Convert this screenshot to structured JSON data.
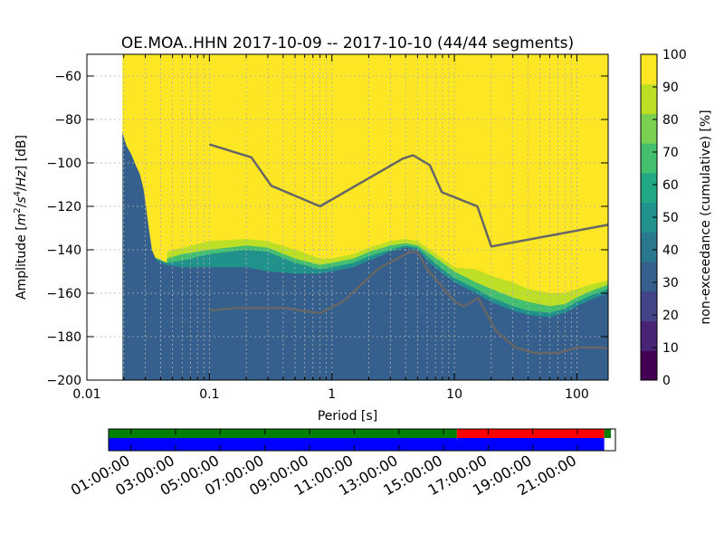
{
  "chart_data": {
    "type": "heatmap",
    "title": "OE.MOA..HHN   2017-10-09 -- 2017-10-10  (44/44 segments)",
    "xlabel": "Period [s]",
    "ylabel": "Amplitude [$m^2/s^4/Hz$] [dB]",
    "ylabel_parts": {
      "prefix": "Amplitude [",
      "m": "m",
      "two": "2",
      "slash1": "/",
      "s": "s",
      "four": "4",
      "slash2": "/",
      "hz": "Hz",
      "suffix": "] [dB]"
    },
    "x_scale": "log",
    "xlim": [
      0.01,
      180
    ],
    "ylim": [
      -200,
      -50
    ],
    "grid": true,
    "x_ticks": [
      {
        "value": 0.01,
        "label": "0.01"
      },
      {
        "value": 0.1,
        "label": "0.1"
      },
      {
        "value": 1,
        "label": "1"
      },
      {
        "value": 10,
        "label": "10"
      },
      {
        "value": 100,
        "label": "100"
      }
    ],
    "y_ticks": [
      {
        "value": -60,
        "label": "−60"
      },
      {
        "value": -80,
        "label": "−80"
      },
      {
        "value": -100,
        "label": "−100"
      },
      {
        "value": -120,
        "label": "−120"
      },
      {
        "value": -140,
        "label": "−140"
      },
      {
        "value": -160,
        "label": "−160"
      },
      {
        "value": -180,
        "label": "−180"
      },
      {
        "value": -200,
        "label": "−200"
      }
    ],
    "period_start": 0.0195,
    "background_color": "#fde725",
    "colorbar": {
      "label": "non-exceedance (cumulative) [%]",
      "range": [
        0,
        100
      ],
      "ticks": [
        0,
        10,
        20,
        30,
        40,
        50,
        60,
        70,
        80,
        90,
        100
      ],
      "colors": [
        "#440154",
        "#482475",
        "#414487",
        "#355f8d",
        "#2a788e",
        "#21918c",
        "#22a884",
        "#44bf70",
        "#7ad151",
        "#bddf26",
        "#fde725"
      ]
    },
    "bands": [
      {
        "name": "30%",
        "color": "#355f8d",
        "points": [
          [
            0.0195,
            -86
          ],
          [
            0.021,
            -92
          ],
          [
            0.023,
            -96
          ],
          [
            0.025,
            -101
          ],
          [
            0.027,
            -105
          ],
          [
            0.029,
            -112
          ],
          [
            0.032,
            -130
          ],
          [
            0.034,
            -140
          ],
          [
            0.037,
            -145
          ],
          [
            0.045,
            -147
          ],
          [
            0.06,
            -148
          ],
          [
            0.1,
            -148
          ],
          [
            0.2,
            -148
          ],
          [
            0.3,
            -150
          ],
          [
            0.5,
            -151
          ],
          [
            0.8,
            -151
          ],
          [
            1.0,
            -150
          ],
          [
            1.5,
            -148
          ],
          [
            2.0,
            -145
          ],
          [
            3.0,
            -141
          ],
          [
            4.0,
            -139
          ],
          [
            5.0,
            -140
          ],
          [
            6.0,
            -145
          ],
          [
            8.0,
            -151
          ],
          [
            10,
            -155
          ],
          [
            15,
            -160
          ],
          [
            20,
            -164
          ],
          [
            30,
            -168
          ],
          [
            40,
            -170
          ],
          [
            60,
            -171
          ],
          [
            80,
            -169
          ],
          [
            100,
            -166
          ],
          [
            130,
            -163
          ],
          [
            180,
            -160
          ]
        ]
      },
      {
        "name": "50%",
        "color": "#21918c",
        "points": [
          [
            0.034,
            -143
          ],
          [
            0.045,
            -146
          ],
          [
            0.06,
            -145
          ],
          [
            0.1,
            -142
          ],
          [
            0.2,
            -140
          ],
          [
            0.3,
            -141
          ],
          [
            0.5,
            -146
          ],
          [
            0.8,
            -149
          ],
          [
            1.0,
            -148
          ],
          [
            1.5,
            -146
          ],
          [
            2.0,
            -143
          ],
          [
            3.0,
            -140
          ],
          [
            4.0,
            -138
          ],
          [
            5.0,
            -139
          ],
          [
            6.0,
            -143
          ],
          [
            8.0,
            -149
          ],
          [
            10,
            -153
          ],
          [
            15,
            -158
          ],
          [
            20,
            -162
          ],
          [
            30,
            -166
          ],
          [
            40,
            -168
          ],
          [
            60,
            -169
          ],
          [
            80,
            -167
          ],
          [
            100,
            -164
          ],
          [
            130,
            -161
          ],
          [
            180,
            -158
          ]
        ]
      },
      {
        "name": "70%",
        "color": "#44bf70",
        "points": [
          [
            0.045,
            -144
          ],
          [
            0.06,
            -142
          ],
          [
            0.1,
            -140
          ],
          [
            0.2,
            -138
          ],
          [
            0.3,
            -139
          ],
          [
            0.5,
            -144
          ],
          [
            0.8,
            -147
          ],
          [
            1.0,
            -146
          ],
          [
            1.5,
            -144
          ],
          [
            2.0,
            -141
          ],
          [
            3.0,
            -138
          ],
          [
            4.0,
            -137
          ],
          [
            5.0,
            -138
          ],
          [
            6.0,
            -141
          ],
          [
            8.0,
            -146
          ],
          [
            10,
            -150
          ],
          [
            15,
            -155
          ],
          [
            20,
            -158
          ],
          [
            30,
            -162
          ],
          [
            40,
            -164
          ],
          [
            60,
            -166
          ],
          [
            80,
            -165
          ],
          [
            100,
            -162
          ],
          [
            130,
            -159
          ],
          [
            180,
            -156
          ]
        ]
      },
      {
        "name": "90%",
        "color": "#bddf26",
        "points": [
          [
            0.045,
            -141
          ],
          [
            0.06,
            -139
          ],
          [
            0.1,
            -136
          ],
          [
            0.2,
            -135
          ],
          [
            0.3,
            -136
          ],
          [
            0.5,
            -140
          ],
          [
            0.8,
            -144
          ],
          [
            1.0,
            -144
          ],
          [
            1.5,
            -142
          ],
          [
            2.0,
            -139
          ],
          [
            3.0,
            -136
          ],
          [
            4.0,
            -135
          ],
          [
            5.0,
            -136
          ],
          [
            6.0,
            -139
          ],
          [
            8.0,
            -144
          ],
          [
            10,
            -148
          ],
          [
            15,
            -149
          ],
          [
            20,
            -152
          ],
          [
            30,
            -155
          ],
          [
            40,
            -158
          ],
          [
            60,
            -160
          ],
          [
            80,
            -160
          ],
          [
            100,
            -158
          ],
          [
            130,
            -156
          ],
          [
            180,
            -154
          ]
        ]
      }
    ],
    "nhnm": {
      "name": "NHNM",
      "color": "#666666",
      "points": [
        [
          0.1,
          -91.5
        ],
        [
          0.22,
          -97.4
        ],
        [
          0.32,
          -110.5
        ],
        [
          0.8,
          -120
        ],
        [
          3.8,
          -98
        ],
        [
          4.6,
          -96.5
        ],
        [
          6.3,
          -101
        ],
        [
          7.9,
          -113.5
        ],
        [
          15.4,
          -120
        ],
        [
          20,
          -138.5
        ],
        [
          180,
          -128.5
        ]
      ]
    },
    "nlnm": {
      "name": "NLNM",
      "color": "#666666",
      "points": [
        [
          0.1,
          -168
        ],
        [
          0.17,
          -166.7
        ],
        [
          0.4,
          -166.7
        ],
        [
          0.8,
          -169.2
        ],
        [
          1.24,
          -163.7
        ],
        [
          2.4,
          -148.6
        ],
        [
          4.3,
          -141.1
        ],
        [
          5.0,
          -141.1
        ],
        [
          6.0,
          -149
        ],
        [
          10,
          -163.8
        ],
        [
          12.0,
          -166.2
        ],
        [
          15.6,
          -162.1
        ],
        [
          21.9,
          -177.5
        ],
        [
          31.6,
          -185
        ],
        [
          45,
          -187.5
        ],
        [
          70,
          -187.5
        ],
        [
          101,
          -185
        ],
        [
          154,
          -185
        ],
        [
          180,
          -185.5
        ]
      ]
    }
  },
  "time_axis": {
    "labels": [
      "01:00:00",
      "03:00:00",
      "05:00:00",
      "07:00:00",
      "09:00:00",
      "11:00:00",
      "13:00:00",
      "15:00:00",
      "17:00:00",
      "19:00:00",
      "21:00:00"
    ],
    "tick_hours": [
      1,
      3,
      5,
      7,
      9,
      11,
      13,
      15,
      17,
      19,
      21
    ],
    "span_hours": [
      0,
      22.7
    ],
    "data_span": [
      0,
      22.2
    ],
    "top_segments": [
      {
        "start": 0,
        "end": 15.6,
        "color": "#008000"
      },
      {
        "start": 15.6,
        "end": 22.2,
        "color": "#ff0000"
      },
      {
        "start": 22.2,
        "end": 22.5,
        "color": "#008000"
      }
    ],
    "bottom_color": "#0000ff"
  }
}
